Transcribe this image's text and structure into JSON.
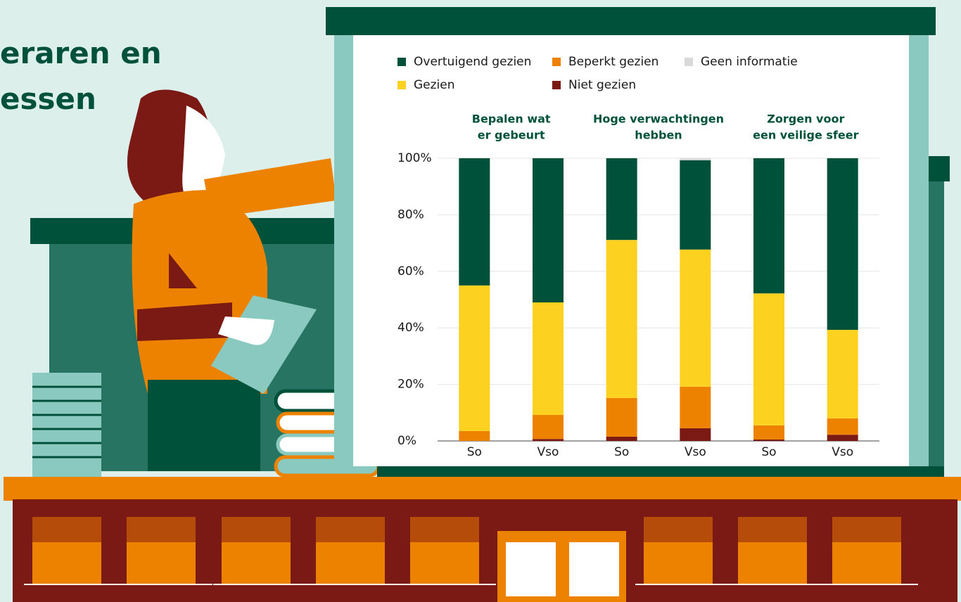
{
  "title_lines": [
    "eraren en",
    "essen"
  ],
  "chart_data": {
    "type": "stacked_bar",
    "groups": [
      {
        "title": [
          "Bepalen wat",
          "er gebeurt"
        ]
      },
      {
        "title": [
          "Hoge verwachtingen",
          "hebben"
        ]
      },
      {
        "title": [
          "Zorgen voor",
          "een veilige sfeer"
        ]
      }
    ],
    "categories": [
      "So",
      "Vso",
      "So",
      "Vso",
      "So",
      "Vso"
    ],
    "series": [
      {
        "name": "Niet gezien",
        "color": "#7b1a14",
        "values": [
          0,
          0.7,
          1.5,
          4.5,
          0.5,
          2.2
        ]
      },
      {
        "name": "Beperkt gezien",
        "color": "#ec8200",
        "values": [
          3.5,
          8.5,
          13.7,
          14.7,
          5,
          5.8
        ]
      },
      {
        "name": "Gezien",
        "color": "#fdd11f",
        "values": [
          51.5,
          39.8,
          55.9,
          48.5,
          46.7,
          31.3
        ]
      },
      {
        "name": "Overtuigend gezien",
        "color": "#00513a",
        "values": [
          45,
          51,
          28.9,
          31.6,
          47.8,
          60.7
        ]
      },
      {
        "name": "Geen informatie",
        "color": "#d9d9d9",
        "values": [
          0,
          0,
          0,
          0.7,
          0,
          0
        ]
      }
    ],
    "ylim": [
      0,
      100
    ],
    "yticks": [
      {
        "value": 0,
        "label": "0%"
      },
      {
        "value": 20,
        "label": "20%"
      },
      {
        "value": 40,
        "label": "40%"
      },
      {
        "value": 60,
        "label": "60%"
      },
      {
        "value": 80,
        "label": "80%"
      },
      {
        "value": 100,
        "label": "100%"
      }
    ],
    "grid": true
  }
}
